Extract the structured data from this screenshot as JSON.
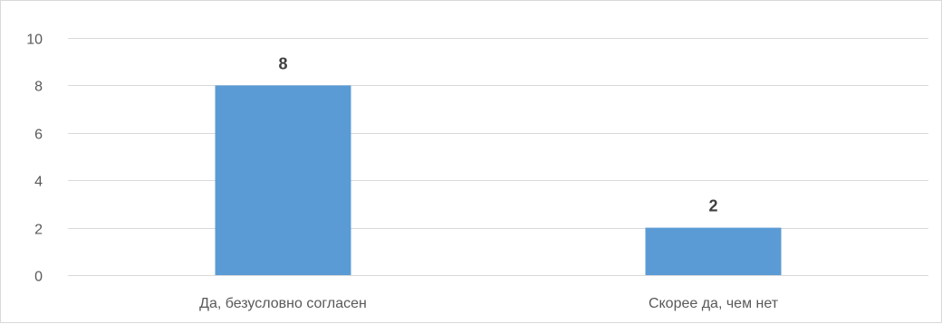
{
  "chart_data": {
    "type": "bar",
    "title": "",
    "xlabel": "",
    "ylabel": "",
    "categories": [
      "Да, безусловно согласен",
      "Скорее да, чем нет"
    ],
    "values": [
      8,
      2
    ],
    "data_labels": [
      "8",
      "2"
    ],
    "ylim": [
      0,
      10
    ],
    "yticks": [
      0,
      2,
      4,
      6,
      8,
      10
    ],
    "grid": true,
    "legend": "none",
    "colors": {
      "bar": "#5b9bd5",
      "grid": "#d9d9d9",
      "tick_text": "#595959",
      "data_label_text": "#404040"
    }
  }
}
